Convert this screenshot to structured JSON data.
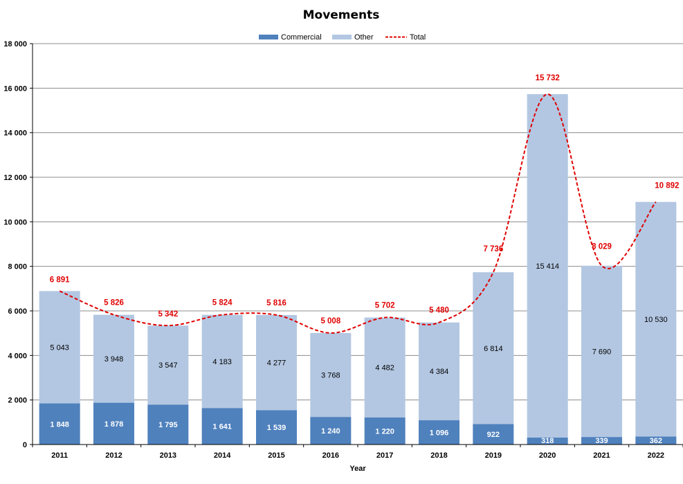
{
  "chart_data": {
    "type": "bar",
    "stacked": true,
    "title": "Movements",
    "xlabel": "Year",
    "ylabel": "",
    "ylim": [
      0,
      18000
    ],
    "yticks": [
      0,
      2000,
      4000,
      6000,
      8000,
      10000,
      12000,
      14000,
      16000,
      18000
    ],
    "ytick_labels": [
      "0",
      "2 000",
      "4 000",
      "6 000",
      "8 000",
      "10 000",
      "12 000",
      "14 000",
      "16 000",
      "18 000"
    ],
    "grid": true,
    "legend_position": "top-center",
    "categories": [
      "2011",
      "2012",
      "2013",
      "2014",
      "2015",
      "2016",
      "2017",
      "2018",
      "2019",
      "2020",
      "2021",
      "2022"
    ],
    "series": [
      {
        "name": "Commercial",
        "color": "#4f81bd",
        "values": [
          1848,
          1878,
          1795,
          1641,
          1539,
          1240,
          1220,
          1096,
          922,
          318,
          339,
          362
        ],
        "labels": [
          "1 848",
          "1 878",
          "1 795",
          "1 641",
          "1 539",
          "1 240",
          "1 220",
          "1 096",
          "922",
          "318",
          "339",
          "362"
        ]
      },
      {
        "name": "Other",
        "color": "#b3c7e2",
        "values": [
          5043,
          3948,
          3547,
          4183,
          4277,
          3768,
          4482,
          4384,
          6814,
          15414,
          7690,
          10530
        ],
        "labels": [
          "5 043",
          "3 948",
          "3 547",
          "4 183",
          "4 277",
          "3 768",
          "4 482",
          "4 384",
          "6 814",
          "15 414",
          "7 690",
          "10 530"
        ]
      }
    ],
    "total": {
      "name": "Total",
      "type": "line",
      "style": "dashed",
      "color": "#e00000",
      "values": [
        6891,
        5826,
        5342,
        5824,
        5816,
        5008,
        5702,
        5480,
        7736,
        15732,
        8029,
        10892
      ],
      "labels": [
        "6 891",
        "5 826",
        "5 342",
        "5 824",
        "5 816",
        "5 008",
        "5 702",
        "5 480",
        "7 736",
        "15 732",
        "8 029",
        "10 892"
      ]
    }
  }
}
